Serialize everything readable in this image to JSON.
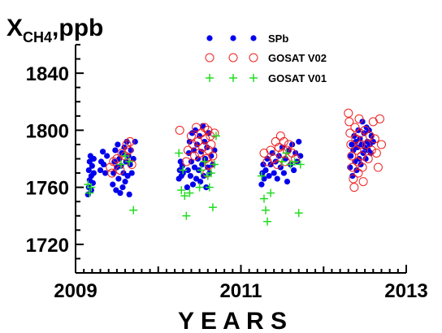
{
  "chart_data": {
    "type": "scatter",
    "title": "",
    "ylabel": {
      "base": "X",
      "sub": "CH4",
      "suffix": ",ppb"
    },
    "xlabel": "Y E A R S",
    "xlim": [
      2009,
      2013
    ],
    "ylim": [
      1700,
      1860
    ],
    "x_ticks": [
      2009,
      2011,
      2013
    ],
    "x_tick_labels": [
      "2009",
      "2011",
      "2013"
    ],
    "y_ticks": [
      1720,
      1760,
      1800,
      1840
    ],
    "y_tick_labels": [
      "1720",
      "1760",
      "1800",
      "1840"
    ],
    "grid": false,
    "legend_position": "top-right",
    "series": [
      {
        "name": "SPb",
        "marker": "filled-circle",
        "color": "#0000ee",
        "points": [
          [
            2009.15,
            1755
          ],
          [
            2009.16,
            1760
          ],
          [
            2009.16,
            1772
          ],
          [
            2009.17,
            1765
          ],
          [
            2009.17,
            1778
          ],
          [
            2009.18,
            1782
          ],
          [
            2009.19,
            1758
          ],
          [
            2009.19,
            1768
          ],
          [
            2009.2,
            1775
          ],
          [
            2009.21,
            1763
          ],
          [
            2009.22,
            1770
          ],
          [
            2009.22,
            1780
          ],
          [
            2009.3,
            1772
          ],
          [
            2009.31,
            1778
          ],
          [
            2009.33,
            1785
          ],
          [
            2009.34,
            1776
          ],
          [
            2009.36,
            1770
          ],
          [
            2009.38,
            1782
          ],
          [
            2009.45,
            1762
          ],
          [
            2009.46,
            1770
          ],
          [
            2009.47,
            1778
          ],
          [
            2009.48,
            1786
          ],
          [
            2009.49,
            1758
          ],
          [
            2009.5,
            1774
          ],
          [
            2009.51,
            1790
          ],
          [
            2009.52,
            1766
          ],
          [
            2009.53,
            1780
          ],
          [
            2009.54,
            1756
          ],
          [
            2009.55,
            1775
          ],
          [
            2009.56,
            1784
          ],
          [
            2009.57,
            1760
          ],
          [
            2009.58,
            1770
          ],
          [
            2009.59,
            1788
          ],
          [
            2009.6,
            1764
          ],
          [
            2009.61,
            1778
          ],
          [
            2009.62,
            1792
          ],
          [
            2009.63,
            1768
          ],
          [
            2009.64,
            1782
          ],
          [
            2009.65,
            1755
          ],
          [
            2009.66,
            1776
          ],
          [
            2009.67,
            1786
          ],
          [
            2009.68,
            1770
          ],
          [
            2009.7,
            1780
          ],
          [
            2009.72,
            1792
          ],
          [
            2010.25,
            1766
          ],
          [
            2010.26,
            1772
          ],
          [
            2010.27,
            1778
          ],
          [
            2010.28,
            1768
          ],
          [
            2010.29,
            1775
          ],
          [
            2010.3,
            1770
          ],
          [
            2010.35,
            1760
          ],
          [
            2010.36,
            1772
          ],
          [
            2010.37,
            1784
          ],
          [
            2010.38,
            1792
          ],
          [
            2010.39,
            1768
          ],
          [
            2010.4,
            1778
          ],
          [
            2010.41,
            1798
          ],
          [
            2010.42,
            1762
          ],
          [
            2010.43,
            1786
          ],
          [
            2010.44,
            1774
          ],
          [
            2010.45,
            1800
          ],
          [
            2010.46,
            1766
          ],
          [
            2010.47,
            1790
          ],
          [
            2010.48,
            1780
          ],
          [
            2010.49,
            1772
          ],
          [
            2010.5,
            1796
          ],
          [
            2010.51,
            1764
          ],
          [
            2010.52,
            1785
          ],
          [
            2010.53,
            1776
          ],
          [
            2010.54,
            1803
          ],
          [
            2010.55,
            1768
          ],
          [
            2010.56,
            1792
          ],
          [
            2010.57,
            1780
          ],
          [
            2010.58,
            1760
          ],
          [
            2010.59,
            1788
          ],
          [
            2010.6,
            1774
          ],
          [
            2010.61,
            1798
          ],
          [
            2010.62,
            1770
          ],
          [
            2010.64,
            1782
          ],
          [
            2010.66,
            1776
          ],
          [
            2010.68,
            1786
          ],
          [
            2011.25,
            1762
          ],
          [
            2011.26,
            1770
          ],
          [
            2011.27,
            1776
          ],
          [
            2011.28,
            1766
          ],
          [
            2011.3,
            1772
          ],
          [
            2011.32,
            1780
          ],
          [
            2011.34,
            1768
          ],
          [
            2011.36,
            1776
          ],
          [
            2011.38,
            1784
          ],
          [
            2011.4,
            1770
          ],
          [
            2011.42,
            1778
          ],
          [
            2011.44,
            1766
          ],
          [
            2011.46,
            1782
          ],
          [
            2011.48,
            1774
          ],
          [
            2011.5,
            1788
          ],
          [
            2011.52,
            1770
          ],
          [
            2011.54,
            1780
          ],
          [
            2011.56,
            1764
          ],
          [
            2011.58,
            1786
          ],
          [
            2011.6,
            1776
          ],
          [
            2011.62,
            1790
          ],
          [
            2011.64,
            1772
          ],
          [
            2011.66,
            1784
          ],
          [
            2011.68,
            1778
          ],
          [
            2011.7,
            1792
          ],
          [
            2011.72,
            1782
          ],
          [
            2012.32,
            1774
          ],
          [
            2012.33,
            1782
          ],
          [
            2012.34,
            1790
          ],
          [
            2012.35,
            1768
          ],
          [
            2012.36,
            1786
          ],
          [
            2012.37,
            1796
          ],
          [
            2012.38,
            1778
          ],
          [
            2012.39,
            1792
          ],
          [
            2012.4,
            1772
          ],
          [
            2012.41,
            1788
          ],
          [
            2012.42,
            1800
          ],
          [
            2012.43,
            1780
          ],
          [
            2012.44,
            1794
          ],
          [
            2012.45,
            1776
          ],
          [
            2012.46,
            1790
          ],
          [
            2012.47,
            1806
          ],
          [
            2012.48,
            1784
          ],
          [
            2012.49,
            1798
          ],
          [
            2012.5,
            1788
          ],
          [
            2012.51,
            1780
          ],
          [
            2012.52,
            1802
          ],
          [
            2012.53,
            1792
          ],
          [
            2012.54,
            1786
          ],
          [
            2012.55,
            1800
          ],
          [
            2012.56,
            1790
          ],
          [
            2012.57,
            1784
          ],
          [
            2012.58,
            1796
          ],
          [
            2012.6,
            1792
          ]
        ]
      },
      {
        "name": "GOSAT V02",
        "marker": "open-circle",
        "color": "#ee2222",
        "points": [
          [
            2009.42,
            1774
          ],
          [
            2009.44,
            1770
          ],
          [
            2009.46,
            1778
          ],
          [
            2009.5,
            1780
          ],
          [
            2009.54,
            1772
          ],
          [
            2009.56,
            1784
          ],
          [
            2009.6,
            1782
          ],
          [
            2009.62,
            1790
          ],
          [
            2009.64,
            1786
          ],
          [
            2009.66,
            1792
          ],
          [
            2009.68,
            1776
          ],
          [
            2010.26,
            1800
          ],
          [
            2010.34,
            1778
          ],
          [
            2010.36,
            1786
          ],
          [
            2010.4,
            1796
          ],
          [
            2010.42,
            1790
          ],
          [
            2010.44,
            1782
          ],
          [
            2010.46,
            1802
          ],
          [
            2010.48,
            1792
          ],
          [
            2010.5,
            1784
          ],
          [
            2010.52,
            1798
          ],
          [
            2010.54,
            1788
          ],
          [
            2010.56,
            1802
          ],
          [
            2010.57,
            1794
          ],
          [
            2010.58,
            1780
          ],
          [
            2010.59,
            1770
          ],
          [
            2010.6,
            1800
          ],
          [
            2010.61,
            1786
          ],
          [
            2010.62,
            1776
          ],
          [
            2010.63,
            1796
          ],
          [
            2010.64,
            1790
          ],
          [
            2010.66,
            1782
          ],
          [
            2010.68,
            1798
          ],
          [
            2011.28,
            1784
          ],
          [
            2011.32,
            1778
          ],
          [
            2011.36,
            1786
          ],
          [
            2011.4,
            1780
          ],
          [
            2011.42,
            1792
          ],
          [
            2011.44,
            1776
          ],
          [
            2011.46,
            1788
          ],
          [
            2011.48,
            1796
          ],
          [
            2011.5,
            1784
          ],
          [
            2011.52,
            1792
          ],
          [
            2011.54,
            1778
          ],
          [
            2011.56,
            1786
          ],
          [
            2011.58,
            1790
          ],
          [
            2011.62,
            1784
          ],
          [
            2011.66,
            1780
          ],
          [
            2012.3,
            1812
          ],
          [
            2012.31,
            1806
          ],
          [
            2012.32,
            1798
          ],
          [
            2012.33,
            1790
          ],
          [
            2012.34,
            1782
          ],
          [
            2012.35,
            1774
          ],
          [
            2012.36,
            1766
          ],
          [
            2012.37,
            1760
          ],
          [
            2012.38,
            1802
          ],
          [
            2012.39,
            1794
          ],
          [
            2012.4,
            1786
          ],
          [
            2012.41,
            1778
          ],
          [
            2012.42,
            1770
          ],
          [
            2012.43,
            1808
          ],
          [
            2012.44,
            1798
          ],
          [
            2012.45,
            1790
          ],
          [
            2012.46,
            1782
          ],
          [
            2012.47,
            1774
          ],
          [
            2012.48,
            1764
          ],
          [
            2012.5,
            1800
          ],
          [
            2012.52,
            1790
          ],
          [
            2012.54,
            1780
          ],
          [
            2012.56,
            1796
          ],
          [
            2012.58,
            1786
          ],
          [
            2012.6,
            1806
          ],
          [
            2012.62,
            1794
          ],
          [
            2012.64,
            1784
          ],
          [
            2012.66,
            1774
          ],
          [
            2012.68,
            1808
          ],
          [
            2012.7,
            1790
          ]
        ]
      },
      {
        "name": "GOSAT V01",
        "marker": "plus",
        "color": "#22dd22",
        "points": [
          [
            2009.15,
            1762
          ],
          [
            2009.17,
            1756
          ],
          [
            2009.19,
            1760
          ],
          [
            2009.55,
            1776
          ],
          [
            2009.6,
            1782
          ],
          [
            2009.65,
            1778
          ],
          [
            2009.7,
            1744
          ],
          [
            2010.25,
            1784
          ],
          [
            2010.28,
            1758
          ],
          [
            2010.3,
            1772
          ],
          [
            2010.32,
            1754
          ],
          [
            2010.34,
            1740
          ],
          [
            2010.38,
            1756
          ],
          [
            2010.5,
            1760
          ],
          [
            2010.52,
            1772
          ],
          [
            2010.56,
            1778
          ],
          [
            2010.6,
            1768
          ],
          [
            2010.62,
            1760
          ],
          [
            2010.64,
            1770
          ],
          [
            2010.66,
            1746
          ],
          [
            2010.68,
            1776
          ],
          [
            2010.7,
            1796
          ],
          [
            2011.25,
            1768
          ],
          [
            2011.28,
            1752
          ],
          [
            2011.3,
            1744
          ],
          [
            2011.32,
            1736
          ],
          [
            2011.36,
            1756
          ],
          [
            2011.5,
            1778
          ],
          [
            2011.55,
            1784
          ],
          [
            2011.6,
            1776
          ],
          [
            2011.65,
            1778
          ],
          [
            2011.7,
            1742
          ],
          [
            2011.72,
            1776
          ]
        ]
      }
    ]
  }
}
